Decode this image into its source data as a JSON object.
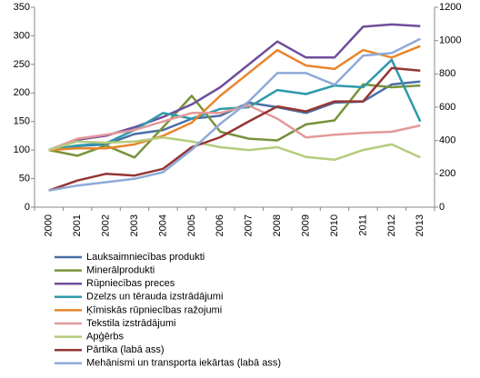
{
  "chart_data": {
    "type": "line",
    "categories": [
      "2000",
      "2001",
      "2002",
      "2003",
      "2004",
      "2005",
      "2006",
      "2007",
      "2008",
      "2009",
      "2010",
      "2011",
      "2012",
      "2013"
    ],
    "ylim": [
      0,
      350
    ],
    "yticks": [
      0,
      50,
      100,
      150,
      200,
      250,
      300,
      350
    ],
    "y2lim": [
      0,
      1200
    ],
    "y2ticks": [
      0,
      200,
      400,
      600,
      800,
      1000,
      1200
    ],
    "grid": false,
    "legend": "bottom",
    "series": [
      {
        "name": "Lauksaimniecības produkti",
        "color": "#4a6fa5",
        "values": [
          100,
          107,
          110,
          128,
          135,
          155,
          160,
          183,
          175,
          165,
          183,
          185,
          215,
          220
        ]
      },
      {
        "name": "Minerālprodukti",
        "color": "#77933c",
        "values": [
          100,
          90,
          108,
          87,
          140,
          195,
          132,
          120,
          117,
          145,
          152,
          215,
          210,
          213
        ]
      },
      {
        "name": "Rūpniecības preces",
        "color": "#6f4e9c",
        "values": [
          100,
          118,
          125,
          140,
          158,
          180,
          210,
          250,
          290,
          262,
          262,
          316,
          320,
          317
        ]
      },
      {
        "name": "Dzelzs un tērauda izstrādājumi",
        "color": "#2e9aab",
        "values": [
          100,
          108,
          112,
          135,
          165,
          155,
          172,
          175,
          205,
          198,
          213,
          210,
          258,
          150
        ]
      },
      {
        "name": "Ķīmiskās rūpniecības ražojumi",
        "color": "#e8862d",
        "values": [
          100,
          103,
          103,
          110,
          125,
          148,
          195,
          235,
          275,
          248,
          242,
          275,
          262,
          282
        ]
      },
      {
        "name": "Tekstila izstrādājumi",
        "color": "#e39a9a",
        "values": [
          100,
          120,
          127,
          135,
          150,
          165,
          165,
          178,
          155,
          122,
          127,
          130,
          132,
          143
        ]
      },
      {
        "name": "Apģērbs",
        "color": "#b5cc7e",
        "values": [
          100,
          115,
          113,
          115,
          122,
          115,
          105,
          100,
          105,
          88,
          83,
          100,
          110,
          87
        ]
      },
      {
        "name": "Pārtika (labā ass)",
        "color": "#943634",
        "axis": "y2",
        "values": [
          100,
          160,
          200,
          190,
          230,
          360,
          420,
          515,
          605,
          575,
          635,
          635,
          835,
          820
        ]
      },
      {
        "name": "Mehānismi un transporta iekārtas (labā ass)",
        "color": "#8eaad8",
        "axis": "y2",
        "values": [
          100,
          130,
          150,
          170,
          210,
          345,
          500,
          635,
          805,
          805,
          735,
          910,
          925,
          1010
        ]
      }
    ]
  }
}
